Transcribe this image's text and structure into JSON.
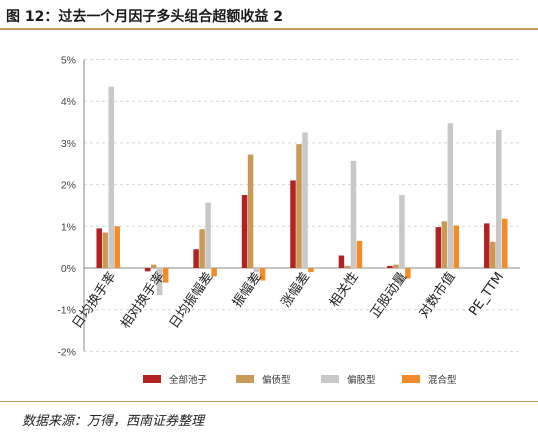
{
  "title": "图 12：过去一个月因子多头组合超额收益 2",
  "source": "数据来源：万得，西南证券整理",
  "chart_data": {
    "type": "bar",
    "categories": [
      "日均换手率",
      "相对换手率",
      "日均振幅差",
      "振幅差",
      "涨幅差",
      "相关性",
      "正股动量",
      "对数市值",
      "PE_TTM"
    ],
    "ylim": [
      -2,
      5
    ],
    "yticks": [
      "-2%",
      "-1%",
      "0%",
      "1%",
      "2%",
      "3%",
      "4%",
      "5%"
    ],
    "series": [
      {
        "name": "全部池子",
        "color": "#b22222",
        "values": [
          0.95,
          -0.08,
          0.45,
          1.75,
          2.1,
          0.3,
          0.05,
          0.98,
          1.07
        ]
      },
      {
        "name": "偏债型",
        "color": "#c79a55",
        "values": [
          0.85,
          0.08,
          0.93,
          2.72,
          2.97,
          0.05,
          0.08,
          1.12,
          0.63
        ]
      },
      {
        "name": "偏股型",
        "color": "#c8c8c8",
        "values": [
          4.35,
          -0.65,
          1.57,
          -0.1,
          3.25,
          2.57,
          1.75,
          3.47,
          3.31
        ]
      },
      {
        "name": "混合型",
        "color": "#f28c28",
        "values": [
          1.0,
          -0.35,
          -0.2,
          -0.3,
          -0.1,
          0.65,
          -0.25,
          1.02,
          1.18
        ]
      }
    ]
  }
}
